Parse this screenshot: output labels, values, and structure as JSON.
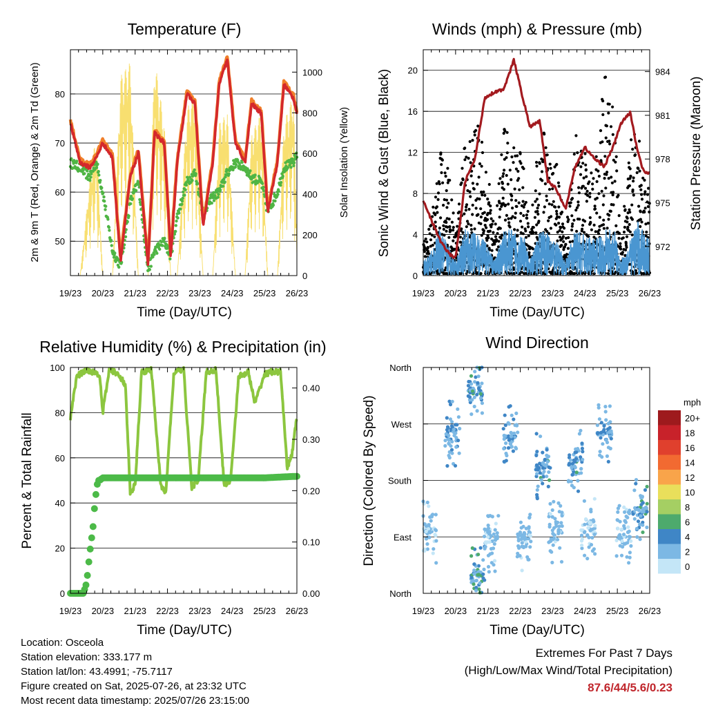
{
  "colors": {
    "temp_2m": "#d4282c",
    "temp_9m": "#f07f2a",
    "dewpoint": "#4fb544",
    "solar": "#f8df70",
    "wind": "#000000",
    "gust": "#4a96d1",
    "pressure": "#a31a1f",
    "rh": "#8cc63f",
    "precip": "#4cba48"
  },
  "x_ticks": [
    "19/23",
    "20/23",
    "21/23",
    "22/23",
    "23/23",
    "24/23",
    "25/23",
    "26/23"
  ],
  "panels": {
    "temperature": {
      "title": "Temperature (F)",
      "xlabel": "Time (Day/UTC)",
      "ylabel_left": "2m & 9m T (Red, Orange) & 2m Td (Green)",
      "ylabel_right": "Solar Insolation (Yellow)"
    },
    "winds": {
      "title": "Winds (mph) & Pressure (mb)",
      "xlabel": "Time (Day/UTC)",
      "ylabel_left": "Sonic Wind & Gust (Blue, Black)",
      "ylabel_right": "Station Pressure (Maroon)"
    },
    "humidity": {
      "title": "Relative Humidity (%) & Precipitation (in)",
      "xlabel": "Time (Day/UTC)",
      "ylabel_left": "Percent & Total Rainfall"
    },
    "direction": {
      "title": "Wind Direction",
      "xlabel": "Time (Day/UTC)",
      "ylabel_left": "Direction (Colored By Speed)"
    }
  },
  "legend": {
    "title": "mph",
    "entries": [
      {
        "label": "20+",
        "color": "#9e1a1d"
      },
      {
        "label": "18",
        "color": "#c8222a"
      },
      {
        "label": "16",
        "color": "#e0402d"
      },
      {
        "label": "14",
        "color": "#f26a31"
      },
      {
        "label": "12",
        "color": "#f9a44a"
      },
      {
        "label": "10",
        "color": "#e9df5b"
      },
      {
        "label": "8",
        "color": "#a5cf63"
      },
      {
        "label": "6",
        "color": "#4daa6d"
      },
      {
        "label": "4",
        "color": "#3f86c6"
      },
      {
        "label": "2",
        "color": "#7cb8e4"
      },
      {
        "label": "0",
        "color": "#c4e6f7"
      }
    ]
  },
  "info": {
    "location": "Location: Osceola",
    "elevation": "Station elevation: 333.177 m",
    "latlon": "Station lat/lon: 43.4991; -75.7117",
    "created": "Figure created on Sat, 2025-07-26, at 23:32 UTC",
    "recent": "Most recent data timestamp: 2025/07/26 23:15:00"
  },
  "extremes": {
    "line1": "Extremes For Past 7 Days",
    "line2": "(High/Low/Max Wind/Total Precipitation)",
    "values": "87.6/44/5.6/0.23"
  },
  "chart_data": [
    {
      "type": "line",
      "title": "Temperature (F)",
      "xlabel": "Time (Day/UTC)",
      "ylabel": "2m & 9m T (Red, Orange) & 2m Td (Green)",
      "y2label": "Solar Insolation (Yellow)",
      "xlim": [
        0,
        7
      ],
      "ylim": [
        43,
        89
      ],
      "y2lim": [
        0,
        1110
      ],
      "yticks": [
        50,
        60,
        70,
        80
      ],
      "y2ticks": [
        0,
        200,
        400,
        600,
        800,
        1000
      ],
      "x_days": [
        0,
        0.3,
        0.6,
        0.8,
        1.0,
        1.3,
        1.55,
        1.85,
        2.1,
        2.4,
        2.6,
        2.9,
        3.1,
        3.3,
        3.6,
        3.85,
        4.1,
        4.4,
        4.6,
        4.85,
        5.1,
        5.4,
        5.6,
        5.9,
        6.1,
        6.4,
        6.6,
        6.9,
        7.0
      ],
      "series": [
        {
          "name": "2m T",
          "values": [
            74,
            66,
            65,
            67,
            70,
            67,
            46,
            63,
            68,
            45,
            72,
            70,
            47,
            66,
            80,
            78,
            53,
            66,
            82,
            87,
            70,
            66,
            78,
            76,
            56,
            66,
            82,
            79,
            76
          ]
        },
        {
          "name": "2m Td",
          "values": [
            66,
            65,
            63,
            66,
            60,
            48,
            45,
            58,
            62,
            44,
            48,
            50,
            47,
            55,
            62,
            64,
            56,
            59,
            60,
            64,
            66,
            65,
            63,
            62,
            56,
            60,
            65,
            66,
            68
          ]
        },
        {
          "name": "Solar",
          "values": [
            0,
            0,
            480,
            700,
            0,
            0,
            980,
            1050,
            0,
            0,
            1070,
            750,
            0,
            0,
            820,
            900,
            0,
            0,
            750,
            800,
            0,
            0,
            700,
            800,
            0,
            0,
            750,
            900,
            150
          ]
        }
      ]
    },
    {
      "type": "scatter",
      "title": "Winds (mph) & Pressure (mb)",
      "xlabel": "Time (Day/UTC)",
      "ylabel": "Sonic Wind & Gust (Blue, Black)",
      "y2label": "Station Pressure (Maroon)",
      "xlim": [
        0,
        7
      ],
      "ylim": [
        0,
        22
      ],
      "y2lim": [
        970,
        985.5
      ],
      "yticks": [
        0,
        4,
        8,
        12,
        16,
        20
      ],
      "y2ticks": [
        972,
        975,
        978,
        981,
        984
      ],
      "x_days": [
        0,
        0.2,
        0.5,
        0.8,
        1.0,
        1.3,
        1.6,
        1.9,
        2.2,
        2.5,
        2.8,
        3.1,
        3.3,
        3.6,
        3.85,
        4.1,
        4.4,
        4.7,
        5.0,
        5.3,
        5.6,
        5.9,
        6.1,
        6.4,
        6.6,
        6.8,
        7.0
      ],
      "series": [
        {
          "name": "Gust daily max",
          "values": [
            3,
            5,
            13,
            10,
            4,
            14,
            15,
            14,
            4,
            15,
            13,
            12,
            4,
            15,
            13,
            12,
            4,
            14,
            12,
            10,
            20,
            16,
            4,
            13,
            15,
            12,
            8
          ]
        },
        {
          "name": "Wind daily max",
          "values": [
            1.5,
            2,
            4.5,
            3,
            1.5,
            4.5,
            4.2,
            3.5,
            1.5,
            4.5,
            4.5,
            4,
            1.5,
            4.5,
            4.2,
            3.5,
            1.5,
            4.5,
            4,
            3.5,
            4.5,
            4.6,
            1.5,
            3.5,
            5.5,
            4.5,
            3.5
          ]
        },
        {
          "name": "Pressure",
          "values": [
            975.2,
            974.1,
            972.5,
            971.5,
            971.2,
            976.5,
            978.0,
            982.2,
            982.6,
            982.8,
            984.8,
            982.0,
            980.2,
            980.6,
            976.5,
            976.0,
            974.6,
            977.5,
            978.8,
            978.0,
            977.5,
            979.0,
            980.4,
            981.2,
            978.8,
            977.2,
            977.0
          ]
        }
      ]
    },
    {
      "type": "line",
      "title": "Relative Humidity (%) & Precipitation (in)",
      "xlabel": "Time (Day/UTC)",
      "ylabel": "Percent & Total Rainfall",
      "xlim": [
        0,
        7
      ],
      "ylim": [
        0,
        100
      ],
      "y2lim": [
        0,
        0.44
      ],
      "yticks": [
        0,
        20,
        40,
        60,
        80,
        100
      ],
      "y2ticks": [
        0.0,
        0.1,
        0.2,
        0.3,
        0.4
      ],
      "x_days": [
        0,
        0.1,
        0.2,
        0.5,
        0.9,
        1.0,
        1.2,
        1.5,
        1.7,
        1.85,
        2.0,
        2.2,
        2.5,
        2.8,
        2.95,
        3.2,
        3.5,
        3.75,
        3.95,
        4.2,
        4.5,
        4.75,
        4.95,
        5.2,
        5.5,
        5.7,
        6.0,
        6.2,
        6.5,
        6.7,
        6.85,
        7.0
      ],
      "series": [
        {
          "name": "RH",
          "values": [
            77,
            88,
            96,
            99,
            97,
            80,
            99,
            97,
            92,
            44,
            48,
            98,
            99,
            47,
            45,
            98,
            99,
            47,
            50,
            98,
            99,
            48,
            50,
            96,
            98,
            84,
            97,
            98,
            98,
            55,
            62,
            78
          ]
        },
        {
          "name": "Precipitation",
          "values": [
            0.0,
            0.0,
            0.0,
            0.0,
            0.0,
            0.0,
            0.0,
            0.0,
            0.0,
            0.0,
            0.0,
            0.0,
            0.0,
            0.0,
            0.0,
            0.0,
            0.0,
            0.0,
            0.0,
            0.0,
            0.0,
            0.0,
            0.0,
            0.0,
            0.0,
            0.0,
            0.0,
            0.0,
            0.0,
            0.0,
            0.0,
            0.0
          ]
        }
      ],
      "precip_x_days": [
        0,
        0.4,
        0.5,
        0.6,
        0.7,
        0.75,
        0.8,
        0.85,
        0.9,
        1.0,
        2.0,
        3.0,
        4.0,
        5.0,
        6.0,
        7.0
      ],
      "precip_values": [
        0.0,
        0.0,
        0.02,
        0.08,
        0.13,
        0.17,
        0.2,
        0.22,
        0.22,
        0.225,
        0.225,
        0.225,
        0.225,
        0.225,
        0.225,
        0.228
      ]
    },
    {
      "type": "scatter",
      "title": "Wind Direction",
      "xlabel": "Time (Day/UTC)",
      "ylabel": "Direction (Colored By Speed)",
      "xlim": [
        0,
        7
      ],
      "ylim": [
        0,
        360
      ],
      "yticks": [
        "North",
        "East",
        "South",
        "West",
        "North"
      ],
      "clusters": [
        {
          "day": 0.2,
          "dir": 100,
          "speed": 1.5
        },
        {
          "day": 0.9,
          "dir": 250,
          "speed": 3.5
        },
        {
          "day": 1.6,
          "dir": 320,
          "speed": 4
        },
        {
          "day": 1.7,
          "dir": 30,
          "speed": 4.5
        },
        {
          "day": 2.1,
          "dir": 90,
          "speed": 1.5
        },
        {
          "day": 2.7,
          "dir": 250,
          "speed": 3.5
        },
        {
          "day": 3.1,
          "dir": 90,
          "speed": 2
        },
        {
          "day": 3.7,
          "dir": 200,
          "speed": 4
        },
        {
          "day": 4.1,
          "dir": 100,
          "speed": 2
        },
        {
          "day": 4.7,
          "dir": 210,
          "speed": 4
        },
        {
          "day": 5.1,
          "dir": 100,
          "speed": 1.5
        },
        {
          "day": 5.6,
          "dir": 255,
          "speed": 3
        },
        {
          "day": 6.2,
          "dir": 90,
          "speed": 2
        },
        {
          "day": 6.7,
          "dir": 130,
          "speed": 4
        }
      ]
    }
  ]
}
